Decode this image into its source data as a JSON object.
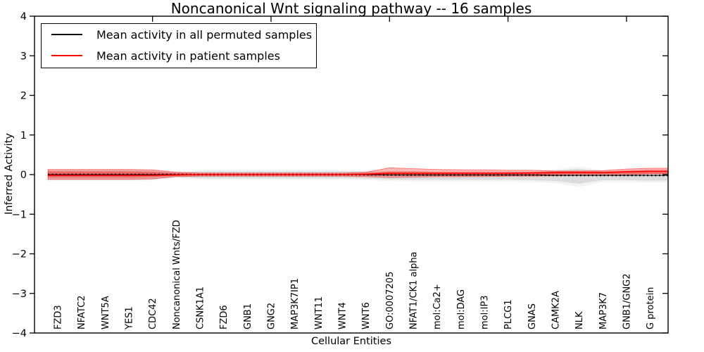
{
  "title": "Noncanonical Wnt signaling pathway -- 16 samples",
  "axes": {
    "xlabel": "Cellular Entities",
    "ylabel": "Inferred Activity",
    "yticks": [
      {
        "value": 4,
        "label": "4"
      },
      {
        "value": 3,
        "label": "3"
      },
      {
        "value": 2,
        "label": "2"
      },
      {
        "value": 1,
        "label": "1"
      },
      {
        "value": 0,
        "label": "0"
      },
      {
        "value": -1,
        "label": "−1"
      },
      {
        "value": -2,
        "label": "−2"
      },
      {
        "value": -3,
        "label": "−3"
      },
      {
        "value": -4,
        "label": "−4"
      }
    ]
  },
  "legend": {
    "entries": [
      {
        "label": "Mean activity in all permuted samples",
        "color": "#000000"
      },
      {
        "label": "Mean activity in patient samples",
        "color": "#ff0000"
      }
    ]
  },
  "chart_data": {
    "type": "line",
    "title": "Noncanonical Wnt signaling pathway -- 16 samples",
    "xlabel": "Cellular Entities",
    "ylabel": "Inferred Activity",
    "ylim": [
      -4,
      4
    ],
    "grid": false,
    "legend_position": "upper left",
    "categories": [
      "FZD3",
      "NFATC2",
      "WNT5A",
      "YES1",
      "CDC42",
      "Noncanonical Wnts/FZD",
      "CSNK1A1",
      "FZD6",
      "GNB1",
      "GNG2",
      "MAP3K7IP1",
      "WNT11",
      "WNT4",
      "WNT6",
      "GO:0007205",
      "NFAT1/CK1 alpha",
      "mol:Ca2+",
      "mol:DAG",
      "mol:IP3",
      "PLCG1",
      "GNAS",
      "CAMK2A",
      "NLK",
      "MAP3K7",
      "GNB1/GNG2",
      "G protein"
    ],
    "series": [
      {
        "name": "Mean activity in all permuted samples",
        "color": "#000000",
        "values": [
          0.0,
          0.0,
          0.0,
          0.0,
          0.0,
          0.0,
          0.0,
          0.0,
          0.0,
          0.0,
          0.0,
          0.0,
          0.0,
          0.0,
          -0.01,
          -0.01,
          -0.01,
          -0.01,
          -0.01,
          -0.01,
          -0.01,
          -0.02,
          -0.02,
          -0.02,
          -0.02,
          -0.02
        ]
      },
      {
        "name": "Mean activity in patient samples",
        "color": "#ff0000",
        "values": [
          -0.02,
          -0.02,
          -0.02,
          -0.02,
          -0.02,
          -0.01,
          0.0,
          0.0,
          0.0,
          0.0,
          0.0,
          0.0,
          0.0,
          0.01,
          0.03,
          0.03,
          0.03,
          0.03,
          0.03,
          0.03,
          0.04,
          0.05,
          0.05,
          0.05,
          0.07,
          0.08
        ]
      }
    ],
    "bands": [
      {
        "name": "permuted-range",
        "color": "#c8c8c8",
        "opacity": 0.55,
        "upper": [
          0.1,
          0.1,
          0.1,
          0.1,
          0.09,
          0.05,
          0.08,
          0.08,
          0.08,
          0.08,
          0.08,
          0.08,
          0.08,
          0.07,
          0.06,
          0.06,
          0.05,
          0.05,
          0.05,
          0.05,
          0.06,
          0.1,
          0.15,
          0.08,
          0.05,
          0.04
        ],
        "lower": [
          -0.12,
          -0.12,
          -0.12,
          -0.12,
          -0.11,
          -0.06,
          -0.09,
          -0.09,
          -0.09,
          -0.09,
          -0.09,
          -0.09,
          -0.09,
          -0.1,
          -0.12,
          -0.13,
          -0.13,
          -0.13,
          -0.13,
          -0.13,
          -0.14,
          -0.16,
          -0.23,
          -0.14,
          -0.14,
          -0.15
        ]
      },
      {
        "name": "patient-range-outer",
        "color": "#ff0000",
        "opacity": 0.28,
        "upper": [
          0.13,
          0.13,
          0.13,
          0.13,
          0.12,
          0.06,
          0.04,
          0.04,
          0.04,
          0.04,
          0.04,
          0.04,
          0.04,
          0.06,
          0.17,
          0.15,
          0.13,
          0.12,
          0.12,
          0.11,
          0.11,
          0.09,
          0.09,
          0.1,
          0.14,
          0.16
        ],
        "lower": [
          -0.12,
          -0.12,
          -0.12,
          -0.12,
          -0.11,
          -0.05,
          -0.04,
          -0.04,
          -0.04,
          -0.04,
          -0.04,
          -0.04,
          -0.04,
          -0.05,
          -0.07,
          -0.06,
          -0.05,
          -0.05,
          -0.05,
          -0.04,
          -0.04,
          -0.03,
          -0.02,
          -0.02,
          0.0,
          0.02
        ],
        "edge_color": "#ff0000"
      },
      {
        "name": "patient-range-inner",
        "color": "#ff0000",
        "opacity": 0.35,
        "upper": [
          0.08,
          0.08,
          0.08,
          0.08,
          0.07,
          0.04,
          0.02,
          0.02,
          0.02,
          0.02,
          0.02,
          0.02,
          0.02,
          0.04,
          0.08,
          0.08,
          0.07,
          0.07,
          0.07,
          0.07,
          0.07,
          0.08,
          0.08,
          0.08,
          0.1,
          0.12
        ],
        "lower": [
          -0.07,
          -0.07,
          -0.07,
          -0.07,
          -0.06,
          -0.03,
          -0.02,
          -0.02,
          -0.02,
          -0.02,
          -0.02,
          -0.02,
          -0.02,
          -0.03,
          -0.02,
          -0.02,
          -0.01,
          -0.01,
          -0.01,
          -0.01,
          -0.01,
          0.0,
          0.01,
          0.01,
          0.02,
          0.03
        ]
      }
    ]
  }
}
